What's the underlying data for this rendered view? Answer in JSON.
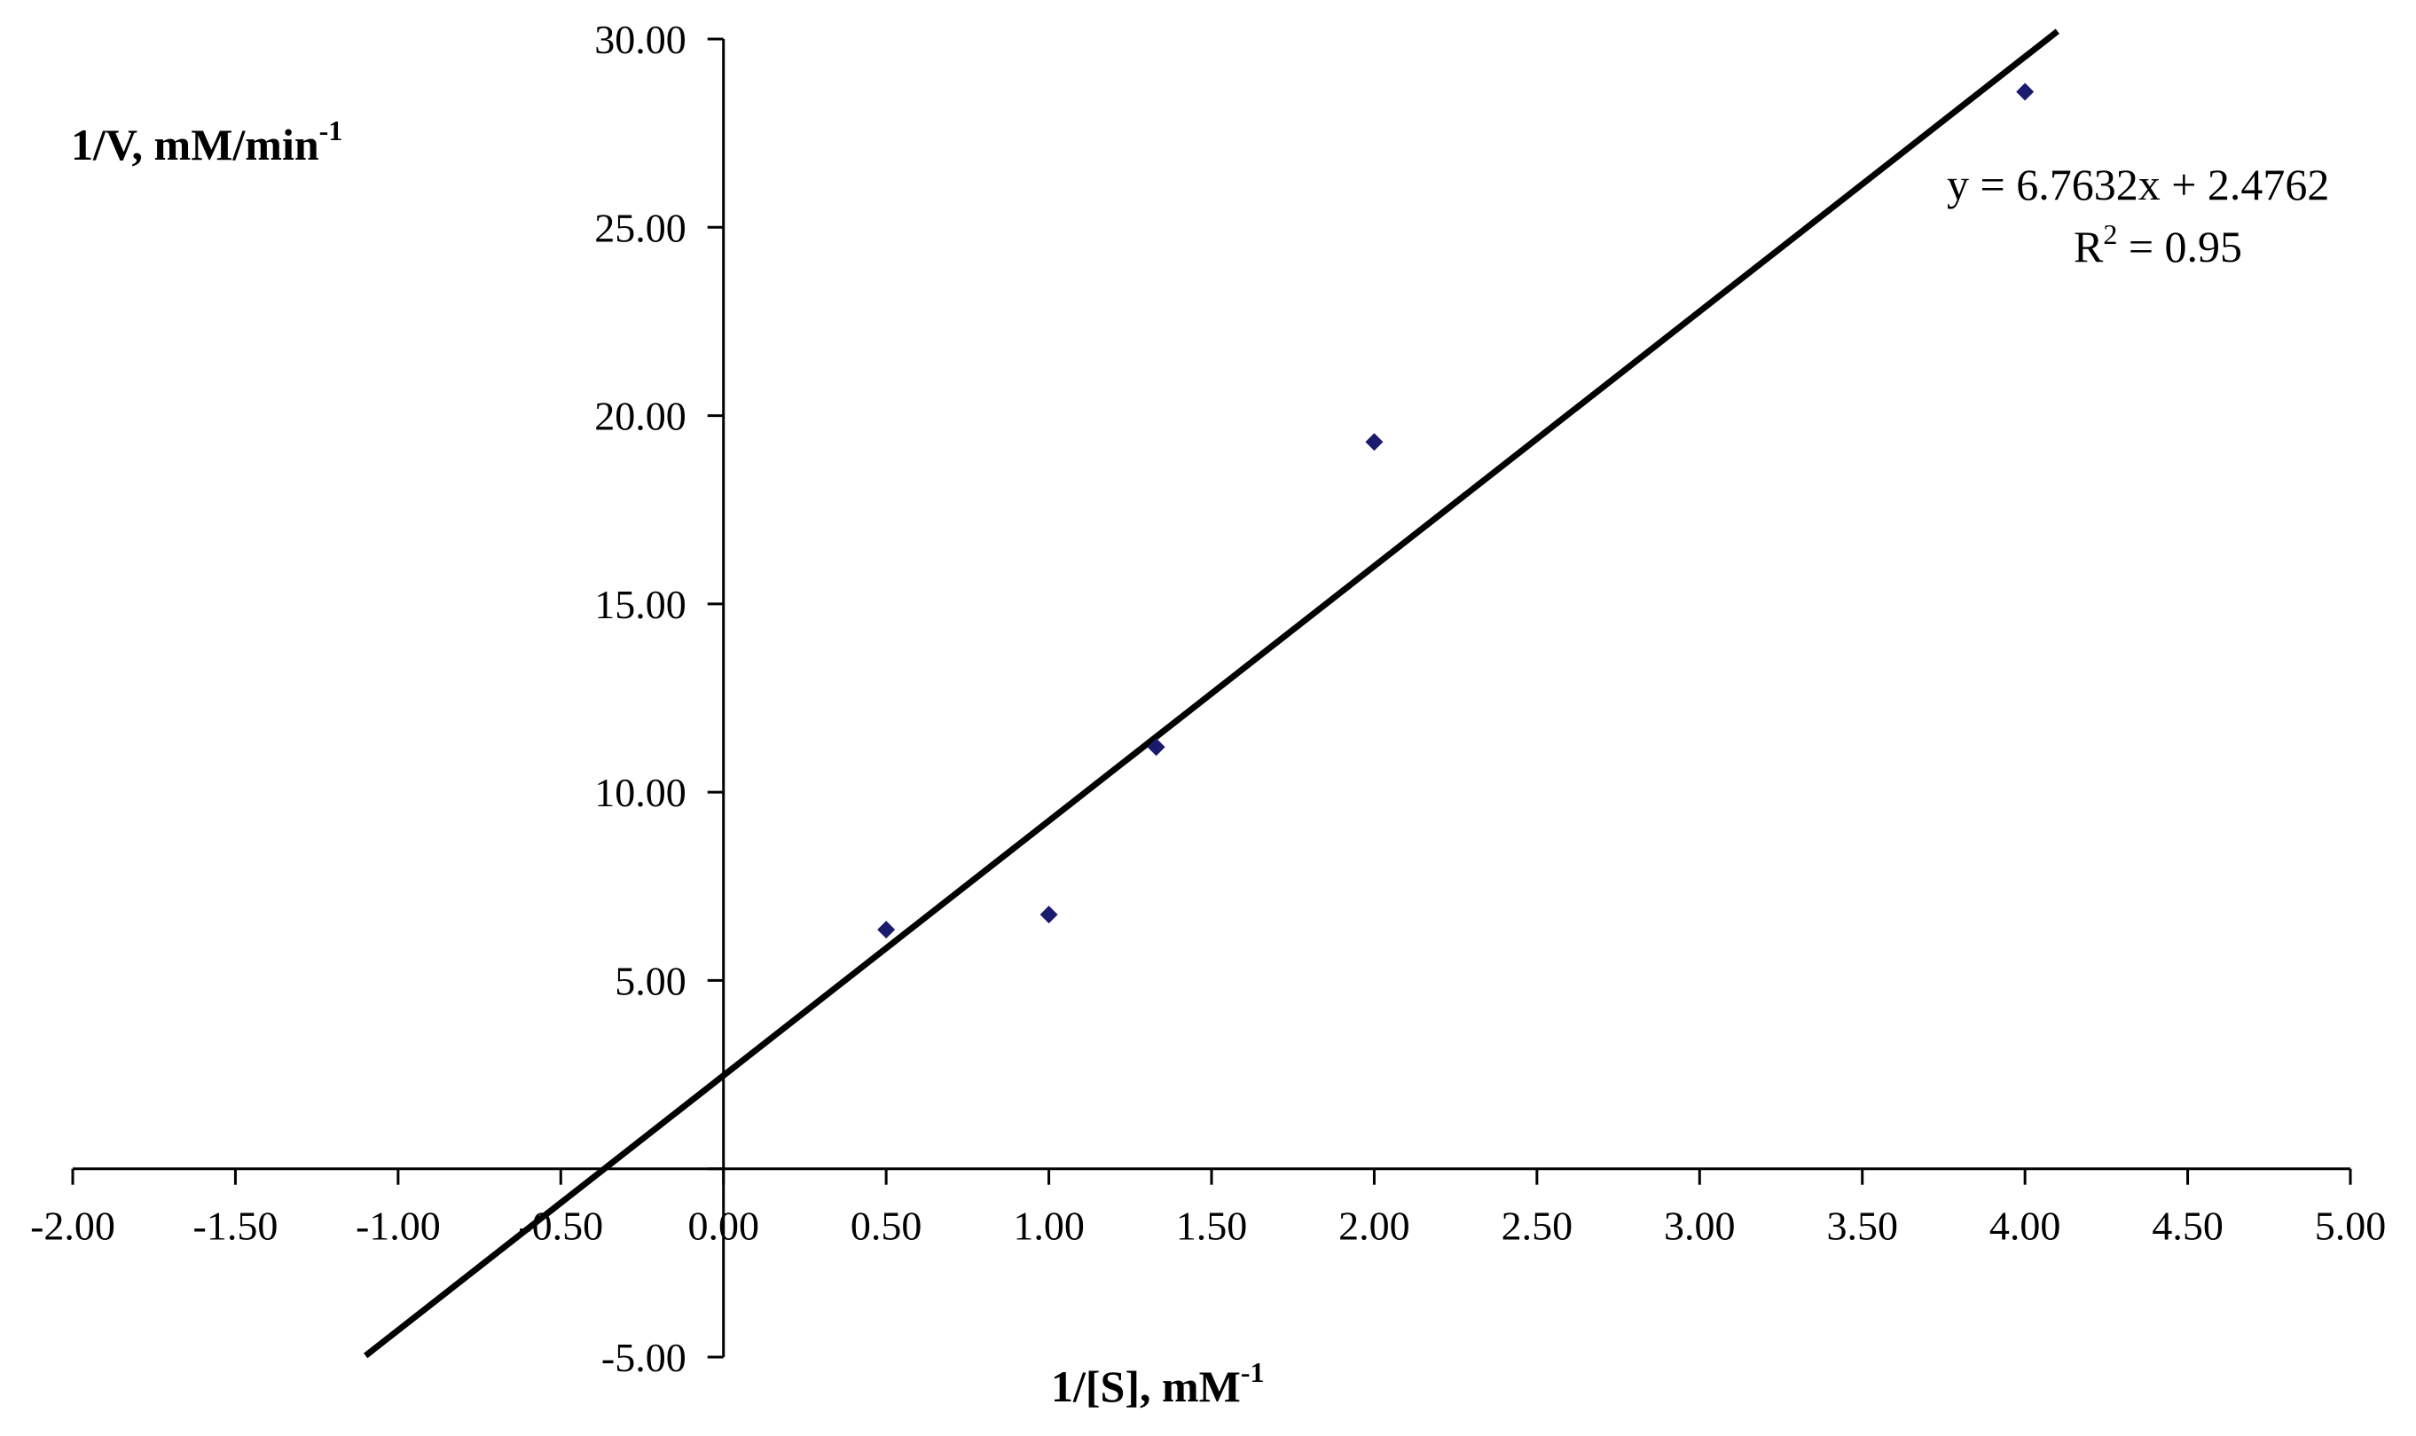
{
  "chart_data": {
    "type": "scatter",
    "title": "",
    "xlabel": {
      "main": "1/[S], mM",
      "sup": "-1"
    },
    "ylabel": {
      "main": "1/V, mM/min",
      "sup": "-1"
    },
    "xlim": [
      -2,
      5
    ],
    "ylim": [
      -5,
      30
    ],
    "x_ticks": [
      -2,
      -1.5,
      -1,
      -0.5,
      0,
      0.5,
      1,
      1.5,
      2,
      2.5,
      3,
      3.5,
      4,
      4.5,
      5
    ],
    "x_tick_labels": [
      "-2.00",
      "-1.50",
      "-1.00",
      "-0.50",
      "0.00",
      "0.50",
      "1.00",
      "1.50",
      "2.00",
      "2.50",
      "3.00",
      "3.50",
      "4.00",
      "4.50",
      "5.00"
    ],
    "y_ticks": [
      -5,
      0,
      5,
      10,
      15,
      20,
      25,
      30
    ],
    "y_tick_labels": [
      "-5.00",
      "",
      "5.00",
      "10.00",
      "15.00",
      "20.00",
      "25.00",
      "30.00"
    ],
    "grid": false,
    "series": [
      {
        "marker": "diamond",
        "color": "#1b1b6e",
        "x": [
          0.5,
          1.0,
          1.33,
          2.0,
          4.0
        ],
        "y": [
          6.35,
          6.75,
          11.2,
          19.3,
          28.6
        ]
      }
    ],
    "trendline": {
      "slope": 6.7632,
      "intercept": 2.4762,
      "x_range": [
        -1.1,
        4.1
      ],
      "color": "#000000"
    },
    "annotations": {
      "equation": "y = 6.7632x + 2.4762",
      "r_squared": {
        "main": "R",
        "sup": "2",
        "rest": " = 0.95"
      }
    }
  }
}
